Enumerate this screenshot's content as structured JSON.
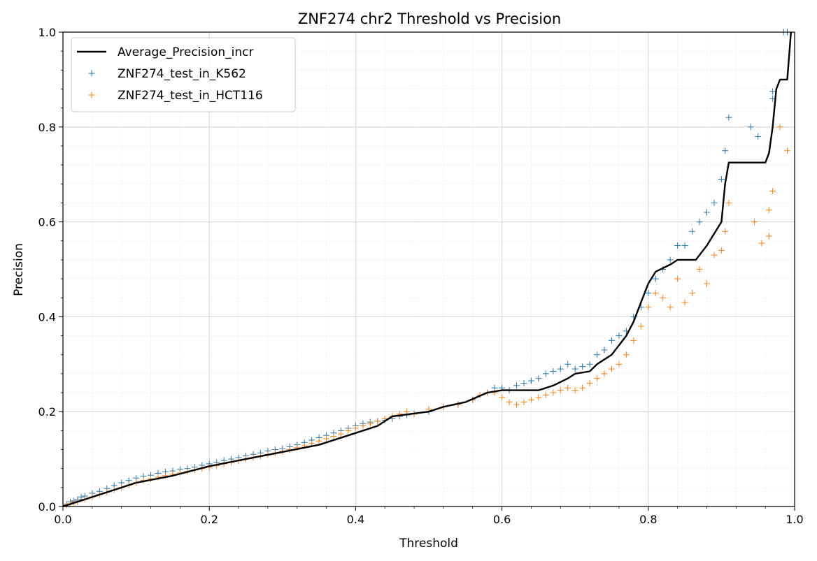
{
  "chart_data": {
    "type": "scatter",
    "title": "ZNF274 chr2 Threshold vs Precision",
    "xlabel": "Threshold",
    "ylabel": "Precision",
    "xlim": [
      0,
      1
    ],
    "ylim": [
      0,
      1
    ],
    "xticks": [
      "0.0",
      "0.2",
      "0.4",
      "0.6",
      "0.8",
      "1.0"
    ],
    "yticks": [
      "0.0",
      "0.2",
      "0.4",
      "0.6",
      "0.8",
      "1.0"
    ],
    "grid": true,
    "minor_grid": true,
    "legend_position": "top-left",
    "series": [
      {
        "name": "Average_Precision_incr",
        "kind": "line",
        "color": "#000000",
        "points": [
          [
            0.0,
            0.0
          ],
          [
            0.02,
            0.01
          ],
          [
            0.05,
            0.025
          ],
          [
            0.1,
            0.05
          ],
          [
            0.15,
            0.065
          ],
          [
            0.2,
            0.085
          ],
          [
            0.25,
            0.1
          ],
          [
            0.3,
            0.115
          ],
          [
            0.35,
            0.13
          ],
          [
            0.4,
            0.155
          ],
          [
            0.43,
            0.17
          ],
          [
            0.45,
            0.19
          ],
          [
            0.5,
            0.2
          ],
          [
            0.52,
            0.21
          ],
          [
            0.55,
            0.22
          ],
          [
            0.58,
            0.24
          ],
          [
            0.6,
            0.245
          ],
          [
            0.65,
            0.245
          ],
          [
            0.67,
            0.255
          ],
          [
            0.69,
            0.27
          ],
          [
            0.7,
            0.28
          ],
          [
            0.72,
            0.285
          ],
          [
            0.73,
            0.3
          ],
          [
            0.75,
            0.32
          ],
          [
            0.77,
            0.36
          ],
          [
            0.78,
            0.39
          ],
          [
            0.79,
            0.43
          ],
          [
            0.8,
            0.47
          ],
          [
            0.81,
            0.495
          ],
          [
            0.83,
            0.51
          ],
          [
            0.84,
            0.52
          ],
          [
            0.865,
            0.52
          ],
          [
            0.88,
            0.55
          ],
          [
            0.9,
            0.6
          ],
          [
            0.905,
            0.68
          ],
          [
            0.91,
            0.725
          ],
          [
            0.96,
            0.725
          ],
          [
            0.965,
            0.745
          ],
          [
            0.97,
            0.8
          ],
          [
            0.975,
            0.88
          ],
          [
            0.98,
            0.9
          ],
          [
            0.99,
            0.9
          ],
          [
            0.995,
            1.0
          ]
        ]
      },
      {
        "name": "ZNF274_test_in_K562",
        "kind": "scatter",
        "marker": "+",
        "color": "#1f77b4",
        "points": [
          [
            0.005,
            0.005
          ],
          [
            0.01,
            0.01
          ],
          [
            0.015,
            0.012
          ],
          [
            0.02,
            0.015
          ],
          [
            0.025,
            0.02
          ],
          [
            0.03,
            0.022
          ],
          [
            0.04,
            0.028
          ],
          [
            0.05,
            0.032
          ],
          [
            0.06,
            0.038
          ],
          [
            0.07,
            0.044
          ],
          [
            0.08,
            0.05
          ],
          [
            0.09,
            0.055
          ],
          [
            0.1,
            0.06
          ],
          [
            0.11,
            0.064
          ],
          [
            0.12,
            0.066
          ],
          [
            0.13,
            0.07
          ],
          [
            0.14,
            0.073
          ],
          [
            0.15,
            0.075
          ],
          [
            0.16,
            0.078
          ],
          [
            0.17,
            0.08
          ],
          [
            0.18,
            0.083
          ],
          [
            0.19,
            0.087
          ],
          [
            0.2,
            0.09
          ],
          [
            0.21,
            0.093
          ],
          [
            0.22,
            0.097
          ],
          [
            0.23,
            0.1
          ],
          [
            0.24,
            0.103
          ],
          [
            0.25,
            0.107
          ],
          [
            0.26,
            0.11
          ],
          [
            0.27,
            0.113
          ],
          [
            0.28,
            0.117
          ],
          [
            0.29,
            0.12
          ],
          [
            0.3,
            0.122
          ],
          [
            0.31,
            0.126
          ],
          [
            0.32,
            0.13
          ],
          [
            0.33,
            0.135
          ],
          [
            0.34,
            0.14
          ],
          [
            0.35,
            0.145
          ],
          [
            0.36,
            0.15
          ],
          [
            0.37,
            0.155
          ],
          [
            0.38,
            0.16
          ],
          [
            0.39,
            0.165
          ],
          [
            0.4,
            0.17
          ],
          [
            0.41,
            0.175
          ],
          [
            0.42,
            0.178
          ],
          [
            0.43,
            0.18
          ],
          [
            0.44,
            0.182
          ],
          [
            0.45,
            0.185
          ],
          [
            0.46,
            0.19
          ],
          [
            0.47,
            0.193
          ],
          [
            0.48,
            0.196
          ],
          [
            0.5,
            0.2
          ],
          [
            0.52,
            0.21
          ],
          [
            0.54,
            0.215
          ],
          [
            0.56,
            0.225
          ],
          [
            0.58,
            0.24
          ],
          [
            0.59,
            0.25
          ],
          [
            0.6,
            0.25
          ],
          [
            0.61,
            0.245
          ],
          [
            0.62,
            0.255
          ],
          [
            0.63,
            0.26
          ],
          [
            0.64,
            0.265
          ],
          [
            0.65,
            0.27
          ],
          [
            0.66,
            0.28
          ],
          [
            0.67,
            0.285
          ],
          [
            0.68,
            0.29
          ],
          [
            0.69,
            0.3
          ],
          [
            0.7,
            0.29
          ],
          [
            0.71,
            0.295
          ],
          [
            0.72,
            0.3
          ],
          [
            0.73,
            0.32
          ],
          [
            0.74,
            0.33
          ],
          [
            0.75,
            0.35
          ],
          [
            0.76,
            0.36
          ],
          [
            0.77,
            0.37
          ],
          [
            0.78,
            0.4
          ],
          [
            0.79,
            0.42
          ],
          [
            0.8,
            0.45
          ],
          [
            0.81,
            0.48
          ],
          [
            0.82,
            0.5
          ],
          [
            0.83,
            0.52
          ],
          [
            0.84,
            0.55
          ],
          [
            0.85,
            0.55
          ],
          [
            0.86,
            0.58
          ],
          [
            0.87,
            0.6
          ],
          [
            0.88,
            0.62
          ],
          [
            0.89,
            0.64
          ],
          [
            0.9,
            0.69
          ],
          [
            0.905,
            0.75
          ],
          [
            0.91,
            0.82
          ],
          [
            0.94,
            0.8
          ],
          [
            0.95,
            0.78
          ],
          [
            0.97,
            0.86
          ],
          [
            0.97,
            0.875
          ],
          [
            0.985,
            1.0
          ],
          [
            0.99,
            1.0
          ]
        ]
      },
      {
        "name": "ZNF274_test_in_HCT116",
        "kind": "scatter",
        "marker": "+",
        "color": "#ff7f0e",
        "points": [
          [
            0.005,
            0.003
          ],
          [
            0.01,
            0.006
          ],
          [
            0.015,
            0.008
          ],
          [
            0.02,
            0.01
          ],
          [
            0.03,
            0.015
          ],
          [
            0.04,
            0.02
          ],
          [
            0.05,
            0.025
          ],
          [
            0.06,
            0.03
          ],
          [
            0.07,
            0.035
          ],
          [
            0.08,
            0.04
          ],
          [
            0.09,
            0.045
          ],
          [
            0.1,
            0.05
          ],
          [
            0.11,
            0.055
          ],
          [
            0.12,
            0.058
          ],
          [
            0.13,
            0.062
          ],
          [
            0.14,
            0.065
          ],
          [
            0.15,
            0.068
          ],
          [
            0.16,
            0.071
          ],
          [
            0.17,
            0.074
          ],
          [
            0.18,
            0.077
          ],
          [
            0.19,
            0.08
          ],
          [
            0.2,
            0.083
          ],
          [
            0.21,
            0.086
          ],
          [
            0.22,
            0.09
          ],
          [
            0.23,
            0.093
          ],
          [
            0.24,
            0.096
          ],
          [
            0.25,
            0.1
          ],
          [
            0.26,
            0.103
          ],
          [
            0.27,
            0.106
          ],
          [
            0.28,
            0.11
          ],
          [
            0.29,
            0.113
          ],
          [
            0.3,
            0.116
          ],
          [
            0.31,
            0.12
          ],
          [
            0.32,
            0.124
          ],
          [
            0.33,
            0.128
          ],
          [
            0.34,
            0.133
          ],
          [
            0.35,
            0.138
          ],
          [
            0.36,
            0.143
          ],
          [
            0.37,
            0.148
          ],
          [
            0.38,
            0.153
          ],
          [
            0.39,
            0.16
          ],
          [
            0.4,
            0.165
          ],
          [
            0.41,
            0.17
          ],
          [
            0.42,
            0.175
          ],
          [
            0.43,
            0.18
          ],
          [
            0.44,
            0.185
          ],
          [
            0.45,
            0.19
          ],
          [
            0.46,
            0.195
          ],
          [
            0.47,
            0.2
          ],
          [
            0.48,
            0.195
          ],
          [
            0.5,
            0.205
          ],
          [
            0.52,
            0.21
          ],
          [
            0.54,
            0.215
          ],
          [
            0.56,
            0.225
          ],
          [
            0.57,
            0.235
          ],
          [
            0.58,
            0.24
          ],
          [
            0.59,
            0.24
          ],
          [
            0.6,
            0.23
          ],
          [
            0.61,
            0.22
          ],
          [
            0.62,
            0.215
          ],
          [
            0.63,
            0.22
          ],
          [
            0.64,
            0.225
          ],
          [
            0.65,
            0.23
          ],
          [
            0.66,
            0.235
          ],
          [
            0.67,
            0.24
          ],
          [
            0.68,
            0.245
          ],
          [
            0.69,
            0.25
          ],
          [
            0.7,
            0.245
          ],
          [
            0.71,
            0.25
          ],
          [
            0.72,
            0.26
          ],
          [
            0.73,
            0.27
          ],
          [
            0.74,
            0.28
          ],
          [
            0.75,
            0.29
          ],
          [
            0.76,
            0.3
          ],
          [
            0.77,
            0.32
          ],
          [
            0.78,
            0.35
          ],
          [
            0.79,
            0.38
          ],
          [
            0.8,
            0.42
          ],
          [
            0.81,
            0.45
          ],
          [
            0.82,
            0.44
          ],
          [
            0.83,
            0.42
          ],
          [
            0.84,
            0.48
          ],
          [
            0.85,
            0.43
          ],
          [
            0.86,
            0.45
          ],
          [
            0.87,
            0.5
          ],
          [
            0.88,
            0.47
          ],
          [
            0.89,
            0.53
          ],
          [
            0.9,
            0.54
          ],
          [
            0.905,
            0.58
          ],
          [
            0.91,
            0.64
          ],
          [
            0.945,
            0.6
          ],
          [
            0.955,
            0.555
          ],
          [
            0.965,
            0.57
          ],
          [
            0.965,
            0.625
          ],
          [
            0.97,
            0.665
          ],
          [
            0.98,
            0.8
          ],
          [
            0.99,
            0.75
          ]
        ]
      }
    ]
  }
}
